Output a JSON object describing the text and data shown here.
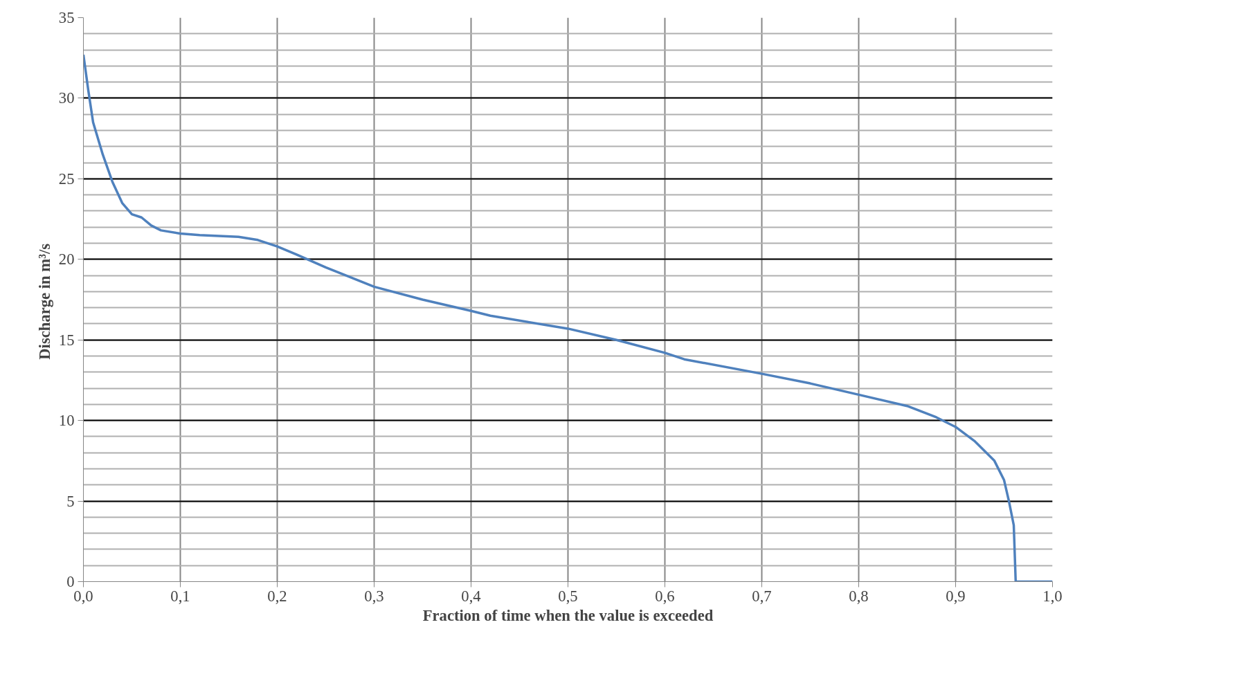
{
  "chart_data": {
    "type": "line",
    "xlabel": "Fraction of time when the value is exceeded",
    "ylabel": "Discharge in  m³/s",
    "xlim": [
      0,
      1
    ],
    "ylim": [
      0,
      35
    ],
    "xticks": [
      {
        "value": 0,
        "label": "0,0"
      },
      {
        "value": 0.1,
        "label": "0,1"
      },
      {
        "value": 0.2,
        "label": "0,2"
      },
      {
        "value": 0.3,
        "label": "0,3"
      },
      {
        "value": 0.4,
        "label": "0,4"
      },
      {
        "value": 0.5,
        "label": "0,5"
      },
      {
        "value": 0.6,
        "label": "0,6"
      },
      {
        "value": 0.7,
        "label": "0,7"
      },
      {
        "value": 0.8,
        "label": "0,8"
      },
      {
        "value": 0.9,
        "label": "0,9"
      },
      {
        "value": 1,
        "label": "1,0"
      }
    ],
    "yticks": [
      0,
      5,
      10,
      15,
      20,
      25,
      30,
      35
    ],
    "grid": true,
    "marker": "none",
    "line_style": "solid",
    "series": [
      {
        "color": "#4f81bd",
        "x": [
          0,
          0.005,
          0.01,
          0.02,
          0.03,
          0.04,
          0.05,
          0.06,
          0.07,
          0.08,
          0.1,
          0.12,
          0.16,
          0.18,
          0.2,
          0.22,
          0.25,
          0.3,
          0.35,
          0.4,
          0.42,
          0.5,
          0.55,
          0.6,
          0.62,
          0.7,
          0.75,
          0.8,
          0.85,
          0.88,
          0.9,
          0.92,
          0.94,
          0.95,
          0.955,
          0.96,
          0.962,
          1.0
        ],
        "values": [
          32.7,
          30.5,
          28.5,
          26.5,
          24.8,
          23.5,
          22.8,
          22.6,
          22.1,
          21.8,
          21.6,
          21.5,
          21.4,
          21.2,
          20.8,
          20.3,
          19.5,
          18.3,
          17.5,
          16.8,
          16.5,
          15.7,
          15.0,
          14.2,
          13.8,
          12.9,
          12.3,
          11.6,
          10.9,
          10.2,
          9.6,
          8.7,
          7.5,
          6.3,
          5.0,
          3.5,
          0,
          0
        ]
      }
    ]
  }
}
